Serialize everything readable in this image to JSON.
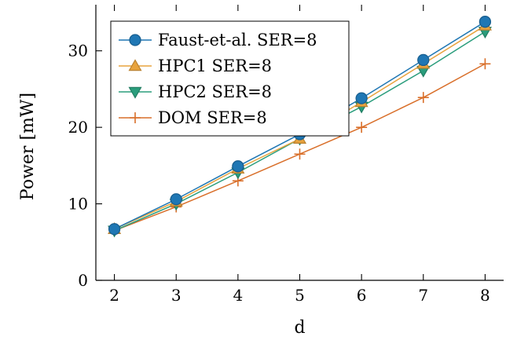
{
  "chart_data": {
    "type": "line",
    "xlabel": "d",
    "ylabel": "Power [mW]",
    "xlim": [
      1.7,
      8.3
    ],
    "ylim": [
      0,
      35
    ],
    "x_ticks": [
      2,
      3,
      4,
      5,
      6,
      7,
      8
    ],
    "y_ticks": [
      0,
      10,
      20,
      30
    ],
    "grid": false,
    "legend_position": "top-left",
    "x": [
      2,
      3,
      4,
      5,
      6,
      7,
      8
    ],
    "series": [
      {
        "name": "Faust-et-al. SER=8",
        "values": [
          6.7,
          10.6,
          14.9,
          19.1,
          23.8,
          28.8,
          33.8
        ],
        "color": "#1f77b4",
        "marker": "circle"
      },
      {
        "name": "HPC1 SER=8",
        "values": [
          6.7,
          10.3,
          14.6,
          18.5,
          23.3,
          28.3,
          33.3
        ],
        "color": "#e8a33d",
        "marker": "triangle-up"
      },
      {
        "name": "HPC2 SER=8",
        "values": [
          6.5,
          10.0,
          14.1,
          18.5,
          22.7,
          27.4,
          32.5
        ],
        "color": "#2a9d7c",
        "marker": "triangle-down"
      },
      {
        "name": "DOM SER=8",
        "values": [
          6.5,
          9.6,
          13.0,
          16.5,
          20.0,
          23.9,
          28.3
        ],
        "color": "#d96f2a",
        "marker": "plus"
      }
    ]
  }
}
